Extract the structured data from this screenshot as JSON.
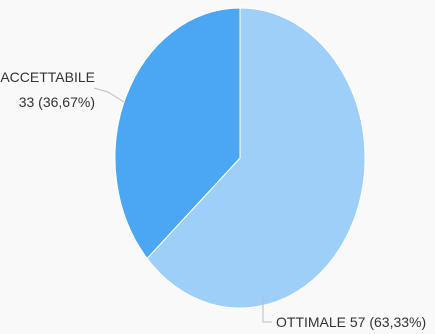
{
  "chart_data": {
    "type": "pie",
    "title": "",
    "slices": [
      {
        "label": "OTTIMALE",
        "value": 57,
        "percent": "63,33%",
        "color": "#9ecff8",
        "text": "OTTIMALE 57 (63,33%)"
      },
      {
        "label": "ACCETTABILE",
        "value": 33,
        "percent": "36,67%",
        "color": "#4ba6f4",
        "text_line1": "ACCETTABILE",
        "text_line2": "33 (36,67%)"
      }
    ],
    "legend": "none",
    "border_color": "#ffffff"
  }
}
